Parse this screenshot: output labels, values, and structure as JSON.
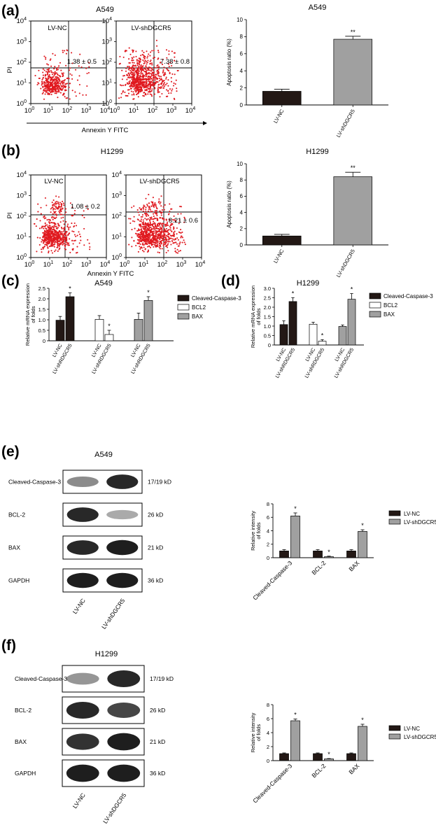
{
  "colors": {
    "dot": "#e0191f",
    "black_bar": "#231815",
    "gray_bar": "#a0a0a0",
    "white_bar": "#ffffff",
    "blot_band": "#1e1e1e"
  },
  "panels": {
    "a": {
      "letter": "(a)",
      "title": "A549",
      "flow": {
        "plots": [
          {
            "label": "LV-NC",
            "quadrant_value": "1.38 ± 0.5",
            "density": 0.55
          },
          {
            "label": "LV-shDGCR5",
            "quadrant_value": "7.38 ± 0.8",
            "density": 1.0
          }
        ],
        "y_label": "PI",
        "x_label": "Annexin Y FITC",
        "x_ticks": [
          "0",
          "1",
          "2",
          "3",
          "4"
        ],
        "y_ticks": [
          "0",
          "1",
          "2",
          "3",
          "4"
        ],
        "tick_base": "10"
      }
    },
    "b": {
      "letter": "(b)",
      "title": "H1299",
      "flow": {
        "plots": [
          {
            "label": "LV-NC",
            "quadrant_value": "1.08 ± 0.2",
            "density": 0.75
          },
          {
            "label": "LV-shDGCR5",
            "quadrant_value": "8.21 ± 0.6",
            "density": 1.0
          }
        ],
        "y_label": "PI",
        "x_label": "Annexin Y FITC",
        "x_ticks": [
          "0",
          "1",
          "2",
          "3",
          "4"
        ],
        "y_ticks": [
          "0",
          "1",
          "2",
          "3",
          "4"
        ],
        "tick_base": "10"
      }
    },
    "c": {
      "letter": "(c)"
    },
    "d": {
      "letter": "(d)"
    },
    "e": {
      "letter": "(e)",
      "title": "A549",
      "blots": [
        {
          "name": "Cleaved-Caspase-3",
          "kd": "17/19 kD",
          "intensities": [
            0.45,
            0.95
          ]
        },
        {
          "name": "BCL-2",
          "kd": "26 kD",
          "intensities": [
            0.95,
            0.3
          ]
        },
        {
          "name": "BAX",
          "kd": "21 kD",
          "intensities": [
            0.95,
            1.0
          ]
        },
        {
          "name": "GAPDH",
          "kd": "36 kD",
          "intensities": [
            1.0,
            1.0
          ]
        }
      ],
      "lanes": [
        "LV-NC",
        "LV-shDGCR5"
      ]
    },
    "f": {
      "letter": "(f)",
      "title": "H1299",
      "blots": [
        {
          "name": "Cleaved-Caspase-3",
          "kd": "17/19 kD",
          "intensities": [
            0.4,
            0.95
          ]
        },
        {
          "name": "BCL-2",
          "kd": "26 kD",
          "intensities": [
            0.95,
            0.8
          ]
        },
        {
          "name": "BAX",
          "kd": "21 kD",
          "intensities": [
            0.9,
            1.0
          ]
        },
        {
          "name": "GAPDH",
          "kd": "36 kD",
          "intensities": [
            1.0,
            1.0
          ]
        }
      ],
      "lanes": [
        "LV-NC",
        "LV-shDGCR5"
      ]
    }
  },
  "chart_data": [
    {
      "id": "a-bar",
      "type": "bar",
      "title": "A549",
      "categories": [
        "LV-NC",
        "LV-shDGCR5"
      ],
      "values": [
        1.6,
        7.7
      ],
      "errors": [
        0.25,
        0.35
      ],
      "significance": [
        "",
        "**"
      ],
      "bar_colors": [
        "#231815",
        "#a0a0a0"
      ],
      "ylabel": "Apoptosis ratio (%)",
      "ylim": [
        0,
        10
      ],
      "yticks": [
        0,
        2,
        4,
        6,
        8,
        10
      ]
    },
    {
      "id": "b-bar",
      "type": "bar",
      "title": "H1299",
      "categories": [
        "LV-NC",
        "LV-shDGCR5"
      ],
      "values": [
        1.1,
        8.4
      ],
      "errors": [
        0.2,
        0.55
      ],
      "significance": [
        "",
        "**"
      ],
      "bar_colors": [
        "#231815",
        "#a0a0a0"
      ],
      "ylabel": "Apoptosis ratio (%)",
      "ylim": [
        0,
        10
      ],
      "yticks": [
        0,
        2,
        4,
        6,
        8,
        10
      ]
    },
    {
      "id": "c-bar",
      "type": "bar",
      "title": "A549",
      "ylabel": "Relative mRNA expression of folds",
      "ylim": [
        0,
        2.5
      ],
      "yticks": [
        "0",
        "0.5",
        "1.0",
        "1.5",
        "2.0",
        "2.5"
      ],
      "categories": [
        "LV-NC",
        "LV-shRDGCR5",
        "LV-NC",
        "LV-shRDGCR5",
        "LV-NC",
        "LV-shRDGCR5"
      ],
      "groups": [
        {
          "name": "Cleaved-Caspase-3",
          "color": "#231815",
          "values": [
            0.98,
            2.1
          ],
          "errors": [
            0.18,
            0.18
          ],
          "significance": [
            "",
            "*"
          ]
        },
        {
          "name": "BCL2",
          "color": "#ffffff",
          "values": [
            1.02,
            0.3
          ],
          "errors": [
            0.18,
            0.2
          ],
          "significance": [
            "",
            "*"
          ]
        },
        {
          "name": "BAX",
          "color": "#a0a0a0",
          "values": [
            1.02,
            1.92
          ],
          "errors": [
            0.3,
            0.18
          ],
          "significance": [
            "",
            "*"
          ]
        }
      ],
      "legend": [
        "Cleaved-Caspase-3",
        "BCL2",
        "BAX"
      ],
      "legend_position": "right"
    },
    {
      "id": "d-bar",
      "type": "bar",
      "title": "H1299",
      "ylabel": "Relative mRNA expression of folds",
      "ylim": [
        0,
        3
      ],
      "yticks": [
        "0",
        "0.5",
        "1.0",
        "1.5",
        "2.0",
        "2.5",
        "3.0"
      ],
      "categories": [
        "LV-NC",
        "LV-shRDGCR5",
        "LV-NC",
        "LV-shRDGCR5",
        "LV-NC",
        "LV-shRDGCR5"
      ],
      "groups": [
        {
          "name": "Cleaved-Caspase-3",
          "color": "#231815",
          "values": [
            1.08,
            2.3
          ],
          "errors": [
            0.2,
            0.2
          ],
          "significance": [
            "",
            "*"
          ]
        },
        {
          "name": "BCL2",
          "color": "#ffffff",
          "values": [
            1.1,
            0.2
          ],
          "errors": [
            0.1,
            0.08
          ],
          "significance": [
            "",
            "*"
          ]
        },
        {
          "name": "BAX",
          "color": "#a0a0a0",
          "values": [
            0.98,
            2.42
          ],
          "errors": [
            0.08,
            0.3
          ],
          "significance": [
            "",
            "*"
          ]
        }
      ],
      "legend": [
        "Cleaved-Caspase-3",
        "BCL2",
        "BAX"
      ],
      "legend_position": "right"
    },
    {
      "id": "e-bar",
      "type": "bar",
      "ylabel": "Relative intensity of folds",
      "ylim": [
        0,
        8
      ],
      "yticks": [
        0,
        2,
        4,
        6,
        8
      ],
      "categories": [
        "Cleaved-Caspase-3",
        "BCL-2",
        "BAX"
      ],
      "series": [
        {
          "name": "LV-NC",
          "color": "#231815",
          "values": [
            1.0,
            1.0,
            1.0
          ],
          "errors": [
            0.2,
            0.2,
            0.2
          ],
          "significance": [
            "",
            "",
            ""
          ]
        },
        {
          "name": "LV-shDGCR5",
          "color": "#a0a0a0",
          "values": [
            6.2,
            0.15,
            3.9
          ],
          "errors": [
            0.45,
            0.08,
            0.25
          ],
          "significance": [
            "*",
            "*",
            "*"
          ]
        }
      ],
      "legend_position": "right"
    },
    {
      "id": "f-bar",
      "type": "bar",
      "ylabel": "Relative intensity of folds",
      "ylim": [
        0,
        8
      ],
      "yticks": [
        0,
        2,
        4,
        6,
        8
      ],
      "categories": [
        "Cleaved-Caspase-3",
        "BCL-2",
        "BAX"
      ],
      "series": [
        {
          "name": "LV-NC",
          "color": "#231815",
          "values": [
            1.0,
            1.0,
            1.0
          ],
          "errors": [
            0.1,
            0.1,
            0.1
          ],
          "significance": [
            "",
            "",
            ""
          ]
        },
        {
          "name": "LV-shDGCR5",
          "color": "#a0a0a0",
          "values": [
            5.7,
            0.25,
            4.9
          ],
          "errors": [
            0.25,
            0.05,
            0.3
          ],
          "significance": [
            "*",
            "*",
            "*"
          ]
        }
      ],
      "legend_position": "right"
    }
  ]
}
